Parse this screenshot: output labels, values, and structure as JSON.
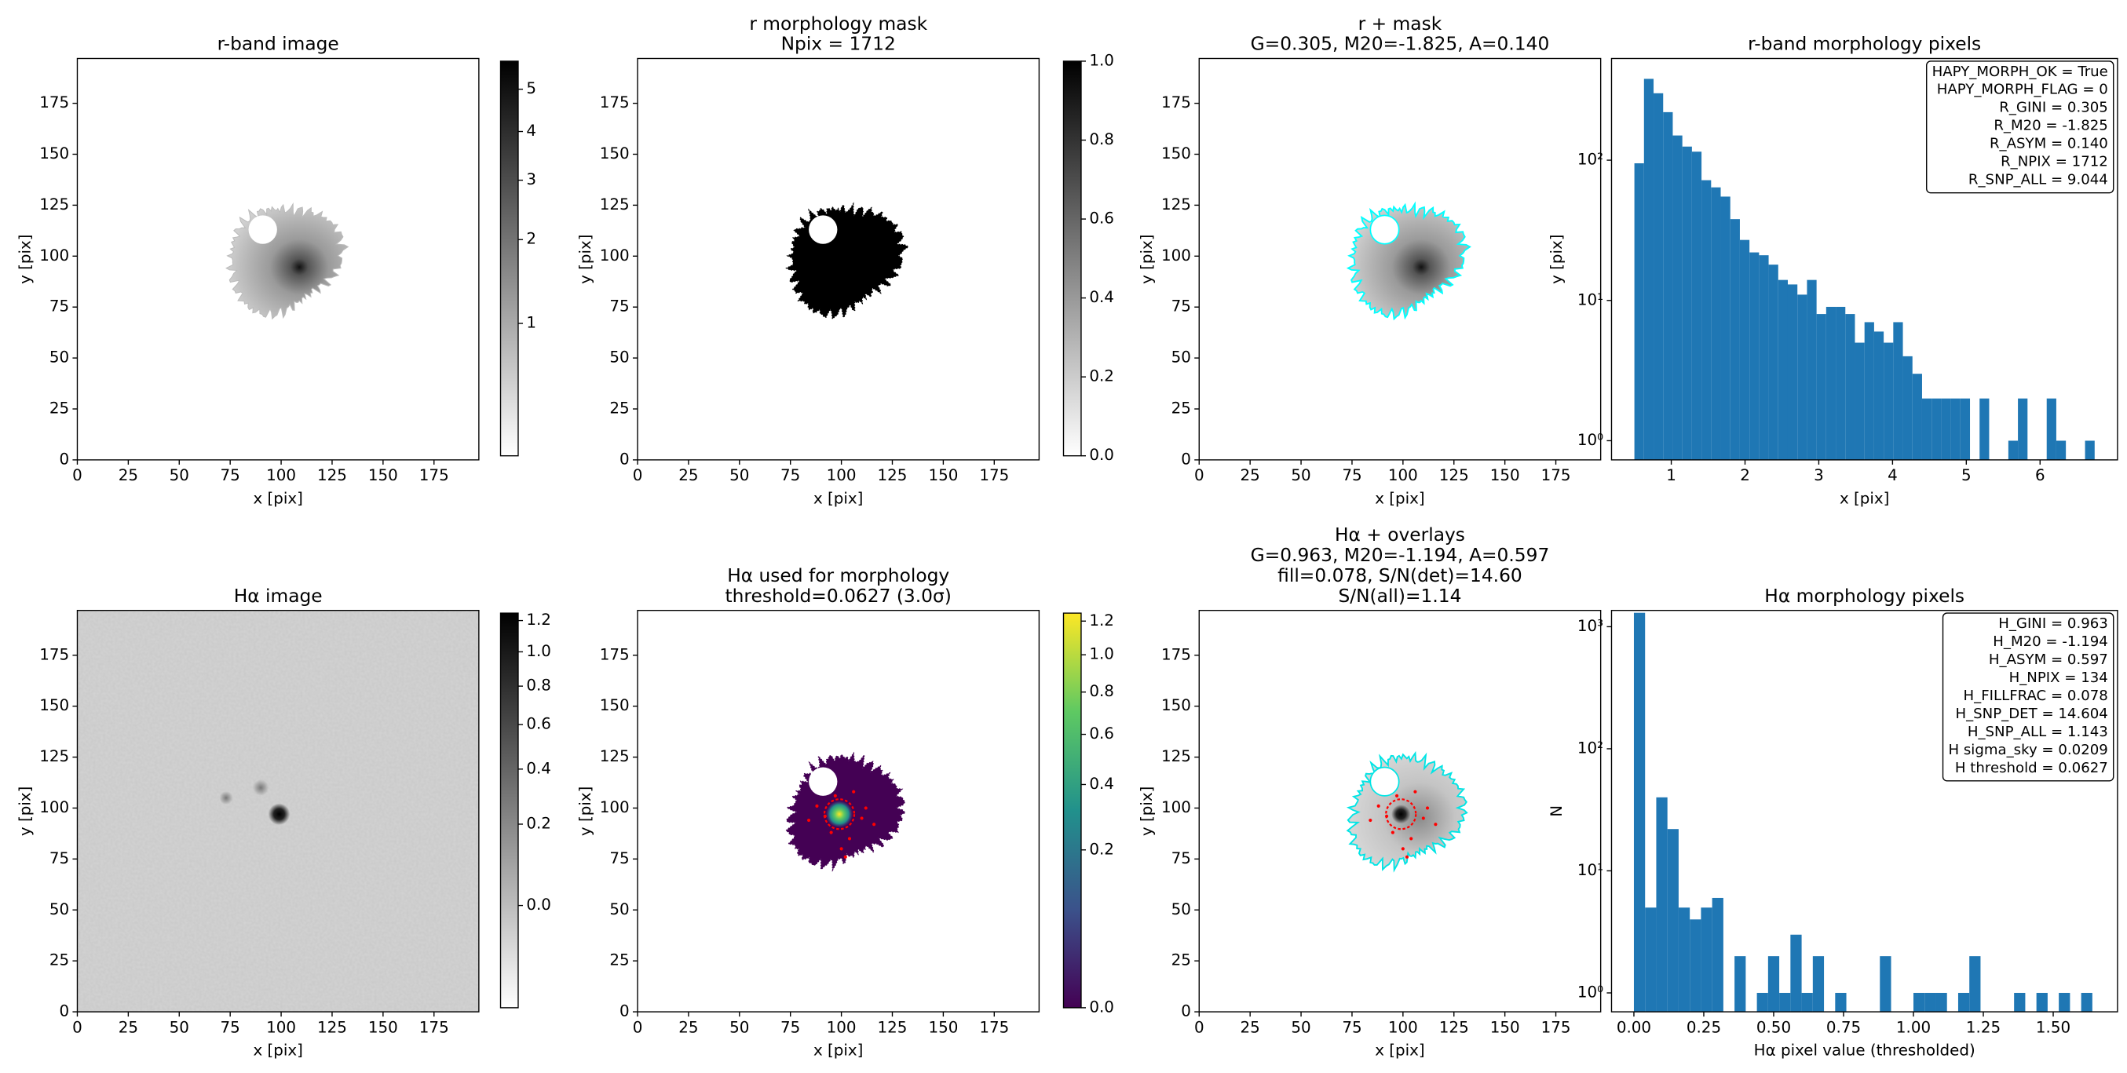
{
  "chart_data": [
    {
      "type": "image",
      "title": [
        "r-band image"
      ],
      "xlabel": "x [pix]",
      "ylabel": "y [pix]",
      "xlim": [
        0,
        197
      ],
      "ylim": [
        0,
        197
      ],
      "xticks": [
        0,
        25,
        50,
        75,
        100,
        125,
        150,
        175
      ],
      "yticks": [
        0,
        25,
        50,
        75,
        100,
        125,
        150,
        175
      ],
      "colorbar": {
        "cmap": "gray_r",
        "scale": "sqrt",
        "lim": [
          0.4,
          5.73
        ],
        "ticks": [
          1,
          2,
          3,
          4,
          5
        ]
      }
    },
    {
      "type": "image",
      "title": [
        "r morphology mask",
        "Npix = 1712"
      ],
      "xlabel": "x [pix]",
      "ylabel": "y [pix]",
      "xlim": [
        0,
        197
      ],
      "ylim": [
        0,
        197
      ],
      "xticks": [
        0,
        25,
        50,
        75,
        100,
        125,
        150,
        175
      ],
      "yticks": [
        0,
        25,
        50,
        75,
        100,
        125,
        150,
        175
      ],
      "colorbar": {
        "cmap": "gray_r",
        "scale": "linear",
        "lim": [
          0,
          1
        ],
        "ticks": [
          {
            "value": 0,
            "label": "0.0"
          },
          {
            "value": 0.2,
            "label": "0.2"
          },
          {
            "value": 0.4,
            "label": "0.4"
          },
          {
            "value": 0.6,
            "label": "0.6"
          },
          {
            "value": 0.8,
            "label": "0.8"
          },
          {
            "value": 1,
            "label": "1.0"
          }
        ]
      }
    },
    {
      "type": "image",
      "title": [
        "r + mask",
        "G=0.305, M20=-1.825, A=0.140"
      ],
      "xlabel": "x [pix]",
      "ylabel": "y [pix]",
      "xlim": [
        0,
        197
      ],
      "ylim": [
        0,
        197
      ],
      "xticks": [
        0,
        25,
        50,
        75,
        100,
        125,
        150,
        175
      ],
      "yticks": [
        0,
        25,
        50,
        75,
        100,
        125,
        150,
        175
      ]
    },
    {
      "type": "histogram",
      "title": [
        "r-band morphology pixels"
      ],
      "xlabel": "x [pix]",
      "ylabel": "y [pix]",
      "color": "#1f77b4",
      "yscale": "log",
      "bins": [
        0.5,
        0.63,
        0.76,
        0.89,
        1.02,
        1.15,
        1.28,
        1.41,
        1.54,
        1.67,
        1.8,
        1.93,
        2.06,
        2.19,
        2.32,
        2.45,
        2.58,
        2.71,
        2.84,
        2.97,
        3.1,
        3.23,
        3.36,
        3.49,
        3.62,
        3.75,
        3.88,
        4.01,
        4.14,
        4.27,
        4.4,
        4.53,
        4.66,
        4.79,
        4.92,
        5.05,
        5.18,
        5.31,
        5.44,
        5.57,
        5.7,
        5.83,
        5.96,
        6.09,
        6.22,
        6.35,
        6.48,
        6.61,
        6.74
      ],
      "values": [
        95,
        380,
        300,
        220,
        150,
        125,
        115,
        72,
        64,
        55,
        38,
        27,
        22,
        21,
        18,
        14,
        13,
        11,
        14,
        8,
        9,
        9,
        8,
        5,
        7,
        6,
        5,
        7,
        4,
        3,
        2,
        2,
        2,
        2,
        2,
        0,
        2,
        0,
        0,
        1,
        2,
        0,
        0,
        2,
        1,
        0,
        0,
        1
      ],
      "xlim": [
        0.19,
        7.05
      ],
      "ylim": [
        0.73,
        531
      ],
      "xticks": [
        1,
        2,
        3,
        4,
        5,
        6
      ],
      "yticks": [
        {
          "value": 1,
          "label": "10⁰"
        },
        {
          "value": 10,
          "label": "10¹"
        },
        {
          "value": 100,
          "label": "10²"
        }
      ],
      "annotation": [
        "HAPY_MORPH_OK = True",
        "HAPY_MORPH_FLAG = 0",
        "R_GINI = 0.305",
        "R_M20 = -1.825",
        "R_ASYM = 0.140",
        "R_NPIX = 1712",
        "R_SNP_ALL = 9.044"
      ]
    },
    {
      "type": "image",
      "title": [
        "Hα image"
      ],
      "xlabel": "x [pix]",
      "ylabel": "y [pix]",
      "xlim": [
        0,
        197
      ],
      "ylim": [
        0,
        197
      ],
      "xticks": [
        0,
        25,
        50,
        75,
        100,
        125,
        150,
        175
      ],
      "yticks": [
        0,
        25,
        50,
        75,
        100,
        125,
        150,
        175
      ],
      "colorbar": {
        "cmap": "gray_r",
        "scale": "sqrt",
        "lim": [
          -0.09,
          1.25
        ],
        "ticks": [
          {
            "value": 0,
            "label": "0.0"
          },
          {
            "value": 0.2,
            "label": "0.2"
          },
          {
            "value": 0.4,
            "label": "0.4"
          },
          {
            "value": 0.6,
            "label": "0.6"
          },
          {
            "value": 0.8,
            "label": "0.8"
          },
          {
            "value": 1,
            "label": "1.0"
          },
          {
            "value": 1.2,
            "label": "1.2"
          }
        ]
      }
    },
    {
      "type": "image",
      "title": [
        "Hα used for morphology",
        "threshold=0.0627 (3.0σ)"
      ],
      "xlabel": "x [pix]",
      "ylabel": "y [pix]",
      "xlim": [
        0,
        197
      ],
      "ylim": [
        0,
        197
      ],
      "xticks": [
        0,
        25,
        50,
        75,
        100,
        125,
        150,
        175
      ],
      "yticks": [
        0,
        25,
        50,
        75,
        100,
        125,
        150,
        175
      ],
      "colorbar": {
        "cmap": "viridis",
        "scale": "sqrt",
        "lim": [
          0,
          1.25
        ],
        "ticks": [
          {
            "value": 0,
            "label": "0.0"
          },
          {
            "value": 0.2,
            "label": "0.2"
          },
          {
            "value": 0.4,
            "label": "0.4"
          },
          {
            "value": 0.6,
            "label": "0.6"
          },
          {
            "value": 0.8,
            "label": "0.8"
          },
          {
            "value": 1,
            "label": "1.0"
          },
          {
            "value": 1.2,
            "label": "1.2"
          }
        ]
      }
    },
    {
      "type": "image",
      "title": [
        "Hα + overlays",
        "G=0.963, M20=-1.194, A=0.597",
        "fill=0.078, S/N(det)=14.60",
        "S/N(all)=1.14"
      ],
      "xlabel": "x [pix]",
      "ylabel": "y [pix]",
      "xlim": [
        0,
        197
      ],
      "ylim": [
        0,
        197
      ],
      "xticks": [
        0,
        25,
        50,
        75,
        100,
        125,
        150,
        175
      ],
      "yticks": [
        0,
        25,
        50,
        75,
        100,
        125,
        150,
        175
      ]
    },
    {
      "type": "histogram",
      "title": [
        "Hα morphology pixels"
      ],
      "xlabel": "Hα pixel value (thresholded)",
      "ylabel": "N",
      "color": "#1f77b4",
      "yscale": "log",
      "bins": [
        0,
        0.04,
        0.08,
        0.12,
        0.16,
        0.2,
        0.24,
        0.28,
        0.32,
        0.36,
        0.4,
        0.44,
        0.48,
        0.52,
        0.56,
        0.6,
        0.64,
        0.68,
        0.72,
        0.76,
        0.8,
        0.84,
        0.88,
        0.92,
        0.96,
        1,
        1.04,
        1.08,
        1.12,
        1.16,
        1.2,
        1.24,
        1.28,
        1.32,
        1.36,
        1.4,
        1.44,
        1.48,
        1.52,
        1.56,
        1.6,
        1.64
      ],
      "values": [
        1300,
        5,
        40,
        22,
        5,
        4,
        5,
        6,
        0,
        2,
        0,
        1,
        2,
        1,
        3,
        1,
        2,
        0,
        1,
        0,
        0,
        0,
        2,
        0,
        0,
        1,
        1,
        1,
        0,
        1,
        2,
        0,
        0,
        0,
        1,
        0,
        1,
        0,
        1,
        0,
        1
      ],
      "xlim": [
        -0.08,
        1.73
      ],
      "ylim": [
        0.7,
        1360
      ],
      "xticks": [
        {
          "value": 0,
          "label": "0.00"
        },
        {
          "value": 0.25,
          "label": "0.25"
        },
        {
          "value": 0.5,
          "label": "0.50"
        },
        {
          "value": 0.75,
          "label": "0.75"
        },
        {
          "value": 1,
          "label": "1.00"
        },
        {
          "value": 1.25,
          "label": "1.25"
        },
        {
          "value": 1.5,
          "label": "1.50"
        }
      ],
      "yticks": [
        {
          "value": 1,
          "label": "10⁰"
        },
        {
          "value": 10,
          "label": "10¹"
        },
        {
          "value": 100,
          "label": "10²"
        },
        {
          "value": 1000,
          "label": "10³"
        }
      ],
      "annotation": [
        "H_GINI = 0.963",
        "H_M20 = -1.194",
        "H_ASYM = 0.597",
        "H_NPIX = 134",
        "H_FILLFRAC = 0.078",
        "H_SNP_DET = 14.604",
        "H_SNP_ALL = 1.143",
        "H sigma_sky = 0.0209",
        "H threshold = 0.0627"
      ]
    }
  ]
}
